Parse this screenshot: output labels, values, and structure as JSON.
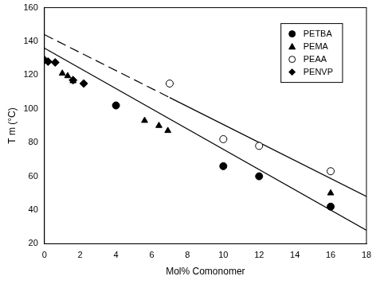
{
  "chart_data": {
    "type": "scatter",
    "x_label": "Mol% Comonomer",
    "y_label": "T m (°C)",
    "xlim": [
      0,
      18
    ],
    "xticks": [
      0,
      2,
      4,
      6,
      8,
      10,
      12,
      14,
      16,
      18
    ],
    "ylim": [
      20,
      160
    ],
    "yticks": [
      20,
      40,
      60,
      80,
      100,
      120,
      140,
      160
    ],
    "grid": false,
    "legend": "upper right",
    "series": [
      {
        "name": "PETBA",
        "color": "#000000",
        "marker": "circle",
        "x": [
          4,
          10,
          12,
          16
        ],
        "values": [
          102,
          66,
          60,
          42
        ]
      },
      {
        "name": "PEMA",
        "color": "#000000",
        "marker": "triangle",
        "x": [
          1,
          1.3,
          1.6,
          5.6,
          6.4,
          6.9,
          16
        ],
        "values": [
          121,
          119.5,
          116.5,
          93,
          90,
          87,
          50
        ]
      },
      {
        "name": "PEAA",
        "color": "#000000",
        "marker": "circle_open",
        "x": [
          7,
          10,
          12,
          16
        ],
        "values": [
          115,
          82,
          78,
          63
        ]
      },
      {
        "name": "PENVP",
        "color": "#000000",
        "marker": "diamond",
        "x": [
          0,
          0.2,
          0.6,
          1.6,
          2.2
        ],
        "values": [
          129,
          128,
          127.5,
          117,
          115
        ]
      },
      {
        "type": "line",
        "line_style": "solid",
        "color": "#000000",
        "x": [
          0,
          18
        ],
        "values": [
          136,
          28
        ]
      },
      {
        "type": "line",
        "line_style": "dashed",
        "color": "#000000",
        "x": [
          0,
          7
        ],
        "values": [
          144,
          106.7
        ]
      },
      {
        "type": "line",
        "line_style": "solid",
        "color": "#000000",
        "x": [
          7,
          18
        ],
        "values": [
          106.7,
          48
        ]
      }
    ]
  }
}
